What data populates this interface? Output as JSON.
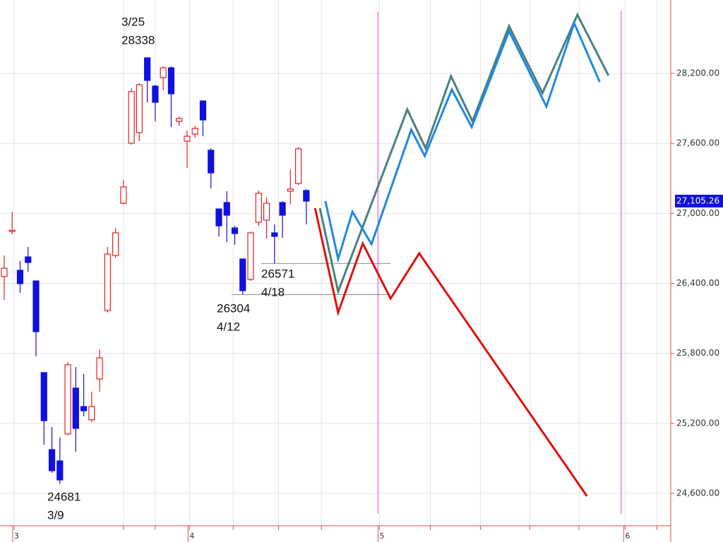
{
  "chart_data": {
    "type": "candlestick",
    "open": [
      26458,
      26845,
      26512,
      26627,
      26421,
      25635,
      24975,
      24878,
      25109,
      25502,
      25344,
      25230,
      25580,
      26167,
      26639,
      27087,
      27601,
      27692,
      28333,
      28091,
      28164,
      28248,
      27789,
      27619,
      27680,
      27964,
      27541,
      27038,
      27093,
      26875,
      26609,
      26434,
      26924,
      26942,
      26833,
      27093,
      27190,
      27256,
      27196
    ],
    "high": [
      26639,
      27014,
      26591,
      26712,
      26421,
      25635,
      25169,
      25078,
      25726,
      25683,
      25623,
      25471,
      25835,
      26712,
      26875,
      27286,
      28073,
      28115,
      28338,
      28103,
      28261,
      28261,
      27831,
      27710,
      27752,
      27964,
      27559,
      27038,
      27190,
      26893,
      26609,
      26845,
      27196,
      27135,
      26906,
      27105,
      27377,
      27571,
      27208
    ],
    "low": [
      26258,
      26821,
      26318,
      26500,
      25774,
      25018,
      24776,
      24681,
      25097,
      24957,
      25260,
      25211,
      25471,
      26149,
      26621,
      27075,
      27589,
      27619,
      27952,
      27789,
      28055,
      27740,
      27752,
      27389,
      27649,
      27661,
      27214,
      26803,
      26754,
      26730,
      26304,
      26421,
      26893,
      26784,
      26571,
      26790,
      27075,
      27244,
      26906
    ],
    "close": [
      26530,
      26855,
      26397,
      26579,
      25986,
      25223,
      24794,
      24715,
      25702,
      25157,
      25308,
      25344,
      25762,
      26651,
      26833,
      27226,
      28043,
      28103,
      28140,
      27952,
      28248,
      28025,
      27813,
      27661,
      27728,
      27801,
      27347,
      26893,
      26984,
      26827,
      26337,
      26833,
      27172,
      27087,
      26803,
      26984,
      27208,
      27553,
      27105
    ],
    "up_color": "#e02020",
    "down_color": "#1010e0",
    "series": [
      {
        "color": "#e01010",
        "x": [
          39.1,
          42.0,
          45.1,
          48.6,
          52.2,
          73.3
        ],
        "values": [
          27045,
          26149,
          26742,
          26270,
          26657,
          24576
        ]
      },
      {
        "color": "#4a8080",
        "x": [
          39.7,
          42.0,
          50.7,
          53.0,
          56.2,
          58.9,
          63.5,
          67.7,
          72.1,
          76.0
        ],
        "values": [
          27045,
          26330,
          27891,
          27559,
          28176,
          27789,
          28605,
          28031,
          28702,
          28182
        ]
      },
      {
        "color": "#1e88e5",
        "x": [
          40.4,
          42.0,
          43.8,
          46.2,
          51.2,
          52.9,
          56.3,
          58.8,
          63.5,
          68.2,
          71.7,
          74.9
        ],
        "values": [
          27105,
          26609,
          27014,
          26736,
          27716,
          27492,
          28061,
          27740,
          28563,
          27916,
          28630,
          28127
        ]
      }
    ],
    "hlines": [
      {
        "value": 26571,
        "x": [
          32.3,
          48.6
        ]
      },
      {
        "value": 26304,
        "x": [
          28.6,
          48.6
        ]
      }
    ],
    "vlines": {
      "color": "#e040e0",
      "x": [
        47.0,
        77.6
      ]
    },
    "annotations": [
      {
        "date": "3/25",
        "value": 28338
      },
      {
        "value": 26571,
        "date": "4/18"
      },
      {
        "value": 26304,
        "date": "4/12"
      },
      {
        "value": 24681,
        "date": "3/9"
      }
    ],
    "last_price": {
      "value": 27105.26,
      "label": "27,105.26"
    },
    "xlim": [
      -0.53,
      83.84
    ],
    "ylim": [
      24322,
      28829
    ],
    "xticks": [
      {
        "value": 1.24,
        "label": "3"
      },
      {
        "value": 23.3,
        "label": "4"
      },
      {
        "value": 47.2,
        "label": "5"
      },
      {
        "value": 78.1,
        "label": "6"
      }
    ],
    "xgrid": [
      1.24,
      15.0,
      19.0,
      23.3,
      28.8,
      34.5,
      39.9,
      47.2,
      53.6,
      59.9,
      66.1,
      72.3,
      78.1,
      82.1
    ],
    "yticks": [
      {
        "value": 24600,
        "label": "24,600.00"
      },
      {
        "value": 25200,
        "label": "25,200.00"
      },
      {
        "value": 25800,
        "label": "25,800.00"
      },
      {
        "value": 26400,
        "label": "26,400.00"
      },
      {
        "value": 27000,
        "label": "27,000.00"
      },
      {
        "value": 27600,
        "label": "27,600.00"
      },
      {
        "value": 28200,
        "label": "28,200.00"
      }
    ],
    "grid": true
  }
}
